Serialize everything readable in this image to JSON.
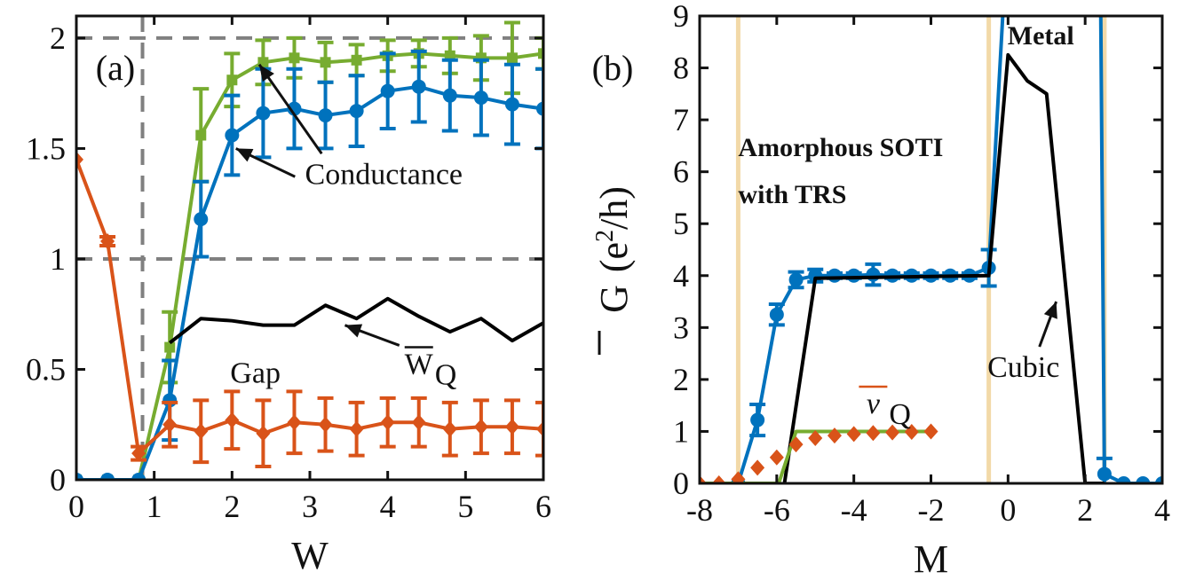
{
  "chart_data": [
    {
      "panel": "(a)",
      "type": "line",
      "xlabel": "W",
      "ylabel": "",
      "xlim": [
        0,
        6
      ],
      "ylim": [
        0,
        2.1
      ],
      "xticks": [
        "0",
        "1",
        "2",
        "3",
        "4",
        "5",
        "6"
      ],
      "yticks": [
        "0",
        "0.5",
        "1",
        "1.5",
        "2"
      ],
      "colors": {
        "green": "#77ac30",
        "blue": "#0072bd",
        "orange": "#d95319",
        "black": "#000000",
        "dash": "#808080"
      },
      "reference_lines": {
        "horizontal": [
          1,
          2
        ],
        "vertical": [
          0.85
        ]
      },
      "series": [
        {
          "name": "green",
          "color": "#77ac30",
          "marker": "square",
          "x": [
            0,
            0.4,
            0.8,
            1.2,
            1.6,
            2.0,
            2.4,
            2.8,
            3.2,
            3.6,
            4.0,
            4.4,
            4.8,
            5.2,
            5.6,
            6.0
          ],
          "y": [
            0,
            0,
            0,
            0.6,
            1.56,
            1.81,
            1.89,
            1.91,
            1.89,
            1.9,
            1.92,
            1.93,
            1.92,
            1.91,
            1.91,
            1.93
          ],
          "err": [
            0,
            0,
            0,
            0.16,
            0.21,
            0.12,
            0.1,
            0.09,
            0.09,
            0.07,
            0.07,
            0.06,
            0.08,
            0.1,
            0.16,
            0.07
          ]
        },
        {
          "name": "blue",
          "color": "#0072bd",
          "marker": "circle",
          "x": [
            0,
            0.4,
            0.8,
            1.2,
            1.6,
            2.0,
            2.4,
            2.8,
            3.2,
            3.6,
            4.0,
            4.4,
            4.8,
            5.2,
            5.6,
            6.0
          ],
          "y": [
            0,
            0,
            0,
            0.36,
            1.18,
            1.56,
            1.66,
            1.68,
            1.65,
            1.67,
            1.76,
            1.78,
            1.74,
            1.73,
            1.7,
            1.68
          ],
          "err": [
            0,
            0,
            0,
            0.18,
            0.17,
            0.18,
            0.2,
            0.18,
            0.15,
            0.16,
            0.17,
            0.16,
            0.16,
            0.17,
            0.18,
            0.18
          ]
        },
        {
          "name": "W_Q",
          "color": "#000000",
          "marker": "none",
          "x": [
            1.2,
            1.6,
            2.0,
            2.4,
            2.8,
            3.2,
            3.6,
            4.0,
            4.4,
            4.8,
            5.2,
            5.6,
            6.0
          ],
          "y": [
            0.62,
            0.73,
            0.72,
            0.7,
            0.7,
            0.79,
            0.73,
            0.82,
            0.74,
            0.67,
            0.73,
            0.63,
            0.71
          ]
        },
        {
          "name": "Gap",
          "color": "#d95319",
          "marker": "diamond",
          "x": [
            0,
            0.4,
            0.8,
            1.2,
            1.6,
            2.0,
            2.4,
            2.8,
            3.2,
            3.6,
            4.0,
            4.4,
            4.8,
            5.2,
            5.6,
            6.0
          ],
          "y": [
            1.45,
            1.08,
            0.12,
            0.25,
            0.22,
            0.27,
            0.21,
            0.26,
            0.25,
            0.23,
            0.26,
            0.26,
            0.23,
            0.24,
            0.24,
            0.23
          ],
          "err": [
            0,
            0.02,
            0.03,
            0.1,
            0.14,
            0.13,
            0.15,
            0.14,
            0.12,
            0.12,
            0.11,
            0.11,
            0.12,
            0.12,
            0.12,
            0.12
          ]
        }
      ],
      "annotations": [
        {
          "text": "Conductance",
          "tx": 3.95,
          "ty": 1.34,
          "arrows": [
            [
              2.35,
              1.88
            ],
            [
              2.05,
              1.5
            ]
          ]
        },
        {
          "text": "Gap",
          "tx": 2.3,
          "ty": 0.44
        },
        {
          "text": "W",
          "subscript": "Q",
          "tx": 4.4,
          "ty": 0.48,
          "arrows": [
            [
              3.45,
              0.7
            ]
          ]
        }
      ]
    },
    {
      "panel": "(b)",
      "type": "line",
      "xlabel": "M",
      "ylabel": "G (e2/h)",
      "ylabel_parts": [
        "G",
        "(e",
        "2",
        "/h)"
      ],
      "xlim": [
        -8,
        4
      ],
      "ylim": [
        0,
        9
      ],
      "xticks": [
        "-8",
        "-6",
        "-4",
        "-2",
        "0",
        "2",
        "4"
      ],
      "yticks": [
        "0",
        "1",
        "2",
        "3",
        "4",
        "5",
        "6",
        "7",
        "8",
        "9"
      ],
      "colors": {
        "blue": "#0072bd",
        "black": "#000000",
        "green": "#77ac30",
        "orange": "#d95319",
        "vline": "#f2d9a8"
      },
      "reference_lines": {
        "vertical": [
          -7,
          -0.5,
          2.5
        ]
      },
      "series": [
        {
          "name": "blue",
          "color": "#0072bd",
          "marker": "circle",
          "x": [
            -7.0,
            -6.5,
            -6.0,
            -5.5,
            -5.0,
            -4.5,
            -4.0,
            -3.5,
            -3.0,
            -2.5,
            -2.0,
            -1.5,
            -1.0,
            -0.5,
            -0.1,
            2.4,
            2.5,
            3.0,
            3.5,
            4.0
          ],
          "y": [
            0,
            1.22,
            3.25,
            3.92,
            4.0,
            4.0,
            4.0,
            4.02,
            4.0,
            4.0,
            4.0,
            4.0,
            4.0,
            4.15,
            9.5,
            9.5,
            0.18,
            0.0,
            0.0,
            0.0
          ],
          "err": [
            0,
            0.3,
            0.2,
            0.15,
            0.12,
            0.05,
            0.05,
            0.2,
            0.05,
            0.05,
            0.05,
            0.05,
            0.05,
            0.35,
            0,
            0,
            0.3,
            0,
            0,
            0
          ]
        },
        {
          "name": "cubic",
          "color": "#000000",
          "marker": "none",
          "x": [
            -5.8,
            -5.0,
            -0.5,
            0.0,
            0.5,
            1.0,
            2.0,
            2.5
          ],
          "y": [
            0,
            3.95,
            4.0,
            8.25,
            7.75,
            7.5,
            0,
            0
          ]
        },
        {
          "name": "nu_Q",
          "color": "#77ac30",
          "marker": "none",
          "x": [
            -8.0,
            -5.95,
            -5.5,
            -2.0
          ],
          "y": [
            0,
            0,
            1,
            1
          ]
        },
        {
          "name": "nu_Q markers",
          "color": "#d95319",
          "marker": "diamond",
          "x": [
            -8.0,
            -7.5,
            -7.0,
            -6.5,
            -6.0,
            -5.5,
            -5.0,
            -4.5,
            -4.0,
            -3.5,
            -3.0,
            -2.5,
            -2.0
          ],
          "y": [
            0,
            0,
            0.08,
            0.3,
            0.5,
            0.75,
            0.87,
            0.92,
            0.95,
            0.97,
            0.98,
            0.99,
            1.0
          ]
        }
      ],
      "annotations": [
        {
          "text": "Amorphous SOTI",
          "tx": -7.0,
          "ty": 6.3,
          "bold": true
        },
        {
          "text": "with TRS",
          "tx": -7.0,
          "ty": 5.4,
          "bold": true
        },
        {
          "text": "Metal",
          "tx": 0.85,
          "ty": 8.45,
          "bold": true
        },
        {
          "text": "Cubic",
          "tx": 0.4,
          "ty": 2.05,
          "arrows": [
            [
              1.25,
              3.5
            ]
          ]
        },
        {
          "text": "ν",
          "subscript": "Q",
          "tx": -3.5,
          "ty": 1.35
        }
      ]
    }
  ]
}
